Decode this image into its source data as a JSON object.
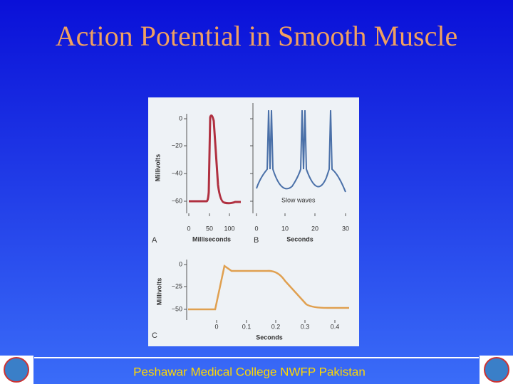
{
  "header": {
    "title": "Action Potential in Smooth Muscle"
  },
  "figure": {
    "panels": [
      {
        "letter": "A",
        "y_label": "Millivolts",
        "x_label": "Milliseconds",
        "y_ticks": [
          "0",
          "−20",
          "−40",
          "−60"
        ],
        "x_ticks": [
          "0",
          "50",
          "100"
        ]
      },
      {
        "letter": "B",
        "x_label": "Seconds",
        "annotation": "Slow waves",
        "x_ticks": [
          "0",
          "10",
          "20",
          "30"
        ]
      },
      {
        "letter": "C",
        "y_label": "Millivolts",
        "x_label": "Seconds",
        "y_ticks": [
          "0",
          "−25",
          "−50"
        ],
        "x_ticks": [
          "0",
          "0.1",
          "0.2",
          "0.3",
          "0.4"
        ]
      }
    ]
  },
  "footer": {
    "text": "Peshawar Medical College NWFP Pakistan"
  }
}
